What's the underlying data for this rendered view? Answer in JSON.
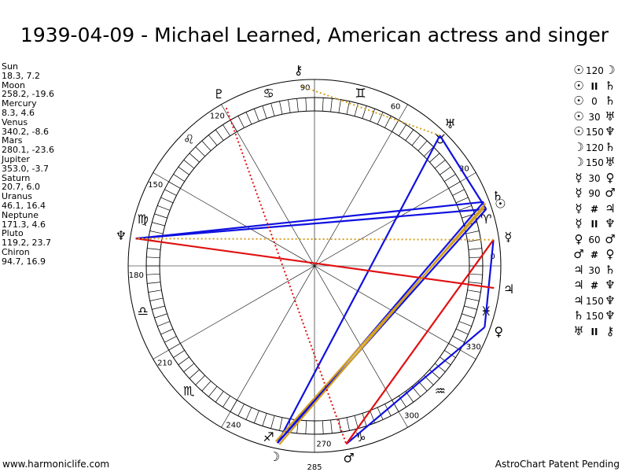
{
  "title": "1939-04-09 - Michael Learned, American actress and singer",
  "planets": [
    {
      "name": "Sun",
      "coords": "18.3, 7.2"
    },
    {
      "name": "Moon",
      "coords": "258.2, -19.6"
    },
    {
      "name": "Mercury",
      "coords": "8.3, 4.6"
    },
    {
      "name": "Venus",
      "coords": "340.2, -8.6"
    },
    {
      "name": "Mars",
      "coords": "280.1, -23.6"
    },
    {
      "name": "Jupiter",
      "coords": "353.0, -3.7"
    },
    {
      "name": "Saturn",
      "coords": "20.7, 6.0"
    },
    {
      "name": "Uranus",
      "coords": "46.1, 16.4"
    },
    {
      "name": "Neptune",
      "coords": "171.3, 4.6"
    },
    {
      "name": "Pluto",
      "coords": "119.2, 23.7"
    },
    {
      "name": "Chiron",
      "coords": "94.7, 16.9"
    }
  ],
  "aspects": [
    {
      "a": "☉",
      "asp": "120",
      "b": "☽"
    },
    {
      "a": "☉",
      "asp": "II",
      "b": "♄"
    },
    {
      "a": "☉",
      "asp": "0",
      "b": "♄"
    },
    {
      "a": "☉",
      "asp": "30",
      "b": "♅"
    },
    {
      "a": "☉",
      "asp": "150",
      "b": "♆"
    },
    {
      "a": "☽",
      "asp": "120",
      "b": "♄"
    },
    {
      "a": "☽",
      "asp": "150",
      "b": "♅"
    },
    {
      "a": "☿",
      "asp": "30",
      "b": "♀"
    },
    {
      "a": "☿",
      "asp": "90",
      "b": "♂"
    },
    {
      "a": "☿",
      "asp": "#",
      "b": "♃"
    },
    {
      "a": "☿",
      "asp": "II",
      "b": "♆"
    },
    {
      "a": "♀",
      "asp": "60",
      "b": "♂"
    },
    {
      "a": "♂",
      "asp": "#",
      "b": "♀"
    },
    {
      "a": "♃",
      "asp": "30",
      "b": "♄"
    },
    {
      "a": "♃",
      "asp": "#",
      "b": "♆"
    },
    {
      "a": "♃",
      "asp": "150",
      "b": "♆"
    },
    {
      "a": "♄",
      "asp": "150",
      "b": "♆"
    },
    {
      "a": "♅",
      "asp": "II",
      "b": "⚷"
    }
  ],
  "wheel": {
    "degree_labels": [
      "0",
      "30",
      "60",
      "90",
      "120",
      "150",
      "180",
      "210",
      "240",
      "270",
      "300",
      "330"
    ],
    "signs": [
      "♈",
      "♉",
      "♊",
      "♋",
      "♌",
      "♍",
      "♎",
      "♏",
      "♐",
      "♑",
      "♒",
      "♓"
    ],
    "asc_value": "285",
    "bodies": [
      {
        "name": "sun",
        "glyph": "☉",
        "lon": 18.3
      },
      {
        "name": "moon",
        "glyph": "☽",
        "lon": 258.2
      },
      {
        "name": "mercury",
        "glyph": "☿",
        "lon": 8.3
      },
      {
        "name": "venus",
        "glyph": "♀",
        "lon": 340.2
      },
      {
        "name": "mars",
        "glyph": "♂",
        "lon": 280.1
      },
      {
        "name": "jupiter",
        "glyph": "♃",
        "lon": 353.0
      },
      {
        "name": "saturn",
        "glyph": "♄",
        "lon": 20.7
      },
      {
        "name": "uranus",
        "glyph": "♅",
        "lon": 46.1
      },
      {
        "name": "neptune",
        "glyph": "♆",
        "lon": 171.3
      },
      {
        "name": "pluto",
        "glyph": "♇",
        "lon": 119.2
      },
      {
        "name": "chiron",
        "glyph": "⚷",
        "lon": 94.7
      }
    ],
    "aspect_lines": [
      {
        "from": "sun",
        "to": "moon",
        "color": "#1010e0",
        "style": "solid"
      },
      {
        "from": "sun",
        "to": "neptune",
        "color": "#1010e0",
        "style": "solid"
      },
      {
        "from": "saturn",
        "to": "neptune",
        "color": "#1010e0",
        "style": "solid"
      },
      {
        "from": "sun",
        "to": "uranus",
        "color": "#1010e0",
        "style": "solid"
      },
      {
        "from": "uranus",
        "to": "moon",
        "color": "#1010e0",
        "style": "solid"
      },
      {
        "from": "saturn",
        "to": "moon",
        "color": "#1010e0",
        "style": "solid"
      },
      {
        "from": "venus",
        "to": "mars",
        "color": "#1010e0",
        "style": "solid"
      },
      {
        "from": "mercury",
        "to": "venus",
        "color": "#1010e0",
        "style": "solid"
      },
      {
        "from": "mercury",
        "to": "mars",
        "color": "#e01010",
        "style": "solid"
      },
      {
        "from": "jupiter",
        "to": "neptune",
        "color": "#e01010",
        "style": "solid"
      },
      {
        "from": "sun",
        "to": "moon",
        "color": "#d4a020",
        "style": "solid",
        "offset": 3
      },
      {
        "from": "saturn",
        "to": "moon",
        "color": "#d4a020",
        "style": "solid",
        "offset": -3
      },
      {
        "from": "mercury",
        "to": "neptune",
        "color": "#d4a020",
        "style": "dotted"
      },
      {
        "from": "uranus",
        "to": "chiron",
        "color": "#d4a020",
        "style": "dotted"
      },
      {
        "from": "pluto",
        "to": "mars",
        "color": "#e01010",
        "style": "dotted"
      }
    ]
  },
  "footer_left": "www.harmoniclife.com",
  "footer_right": "AstroChart Patent Pending"
}
